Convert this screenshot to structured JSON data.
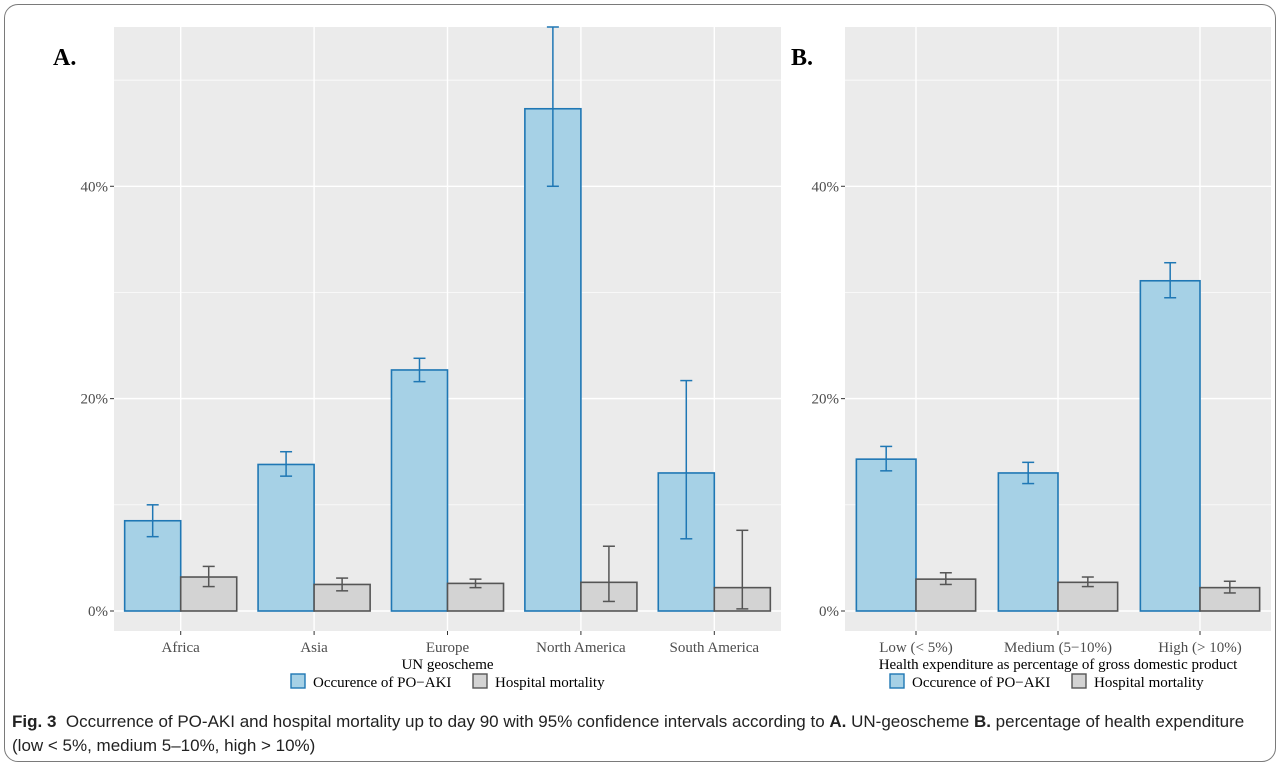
{
  "chart_data": [
    {
      "type": "bar",
      "panel_label": "A.",
      "xlabel": "UN geoscheme",
      "ylabel": "",
      "ylim": [
        0,
        55
      ],
      "yticks": [
        0,
        20,
        40
      ],
      "ytick_labels": [
        "0%",
        "20%",
        "40%"
      ],
      "grid": true,
      "categories": [
        "Africa",
        "Asia",
        "Europe",
        "North America",
        "South America"
      ],
      "series": [
        {
          "name": "Occurence of PO−AKI",
          "color": "#a6d1e6",
          "stroke": "#1f77b4",
          "values": [
            8.5,
            13.8,
            22.7,
            47.3,
            13.0
          ],
          "ci_low": [
            7.0,
            12.7,
            21.6,
            40.0,
            6.8
          ],
          "ci_high": [
            10.0,
            15.0,
            23.8,
            55.0,
            21.7
          ]
        },
        {
          "name": "Hospital mortality",
          "color": "#d3d3d3",
          "stroke": "#555555",
          "values": [
            3.2,
            2.5,
            2.6,
            2.7,
            2.2
          ],
          "ci_low": [
            2.3,
            1.9,
            2.2,
            0.9,
            0.2
          ],
          "ci_high": [
            4.2,
            3.1,
            3.0,
            6.1,
            7.6
          ]
        }
      ],
      "legend_position": "bottom"
    },
    {
      "type": "bar",
      "panel_label": "B.",
      "xlabel": "Health expenditure as percentage of gross domestic product",
      "ylabel": "",
      "ylim": [
        0,
        55
      ],
      "yticks": [
        0,
        20,
        40
      ],
      "ytick_labels": [
        "0%",
        "20%",
        "40%"
      ],
      "grid": true,
      "categories": [
        "Low (< 5%)",
        "Medium (5−10%)",
        "High (> 10%)"
      ],
      "series": [
        {
          "name": "Occurence of PO−AKI",
          "color": "#a6d1e6",
          "stroke": "#1f77b4",
          "values": [
            14.3,
            13.0,
            31.1
          ],
          "ci_low": [
            13.2,
            12.0,
            29.5
          ],
          "ci_high": [
            15.5,
            14.0,
            32.8
          ]
        },
        {
          "name": "Hospital mortality",
          "color": "#d3d3d3",
          "stroke": "#555555",
          "values": [
            3.0,
            2.7,
            2.2
          ],
          "ci_low": [
            2.5,
            2.3,
            1.7
          ],
          "ci_high": [
            3.6,
            3.2,
            2.8
          ]
        }
      ],
      "legend_position": "bottom"
    }
  ],
  "caption": {
    "fig_label": "Fig. 3",
    "text_1": "Occurrence of PO-AKI and hospital mortality up to day 90 with 95% confidence intervals according to ",
    "bold_a": "A.",
    "text_2": " UN-geoscheme ",
    "bold_b": "B.",
    "text_3": " percentage of health expenditure (low < 5%, medium 5–10%, high > 10%)"
  }
}
